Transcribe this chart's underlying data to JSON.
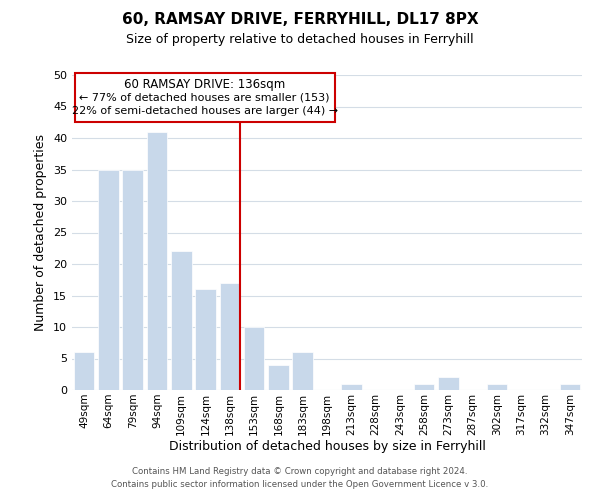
{
  "title": "60, RAMSAY DRIVE, FERRYHILL, DL17 8PX",
  "subtitle": "Size of property relative to detached houses in Ferryhill",
  "xlabel": "Distribution of detached houses by size in Ferryhill",
  "ylabel": "Number of detached properties",
  "bar_labels": [
    "49sqm",
    "64sqm",
    "79sqm",
    "94sqm",
    "109sqm",
    "124sqm",
    "138sqm",
    "153sqm",
    "168sqm",
    "183sqm",
    "198sqm",
    "213sqm",
    "228sqm",
    "243sqm",
    "258sqm",
    "273sqm",
    "287sqm",
    "302sqm",
    "317sqm",
    "332sqm",
    "347sqm"
  ],
  "bar_values": [
    6,
    35,
    35,
    41,
    22,
    16,
    17,
    10,
    4,
    6,
    0,
    1,
    0,
    0,
    1,
    2,
    0,
    1,
    0,
    0,
    1
  ],
  "bar_color": "#c8d8ea",
  "bar_edge_color": "#ffffff",
  "highlight_index": 6,
  "highlight_line_color": "#cc0000",
  "ylim": [
    0,
    50
  ],
  "yticks": [
    0,
    5,
    10,
    15,
    20,
    25,
    30,
    35,
    40,
    45,
    50
  ],
  "annotation_title": "60 RAMSAY DRIVE: 136sqm",
  "annotation_line1": "← 77% of detached houses are smaller (153)",
  "annotation_line2": "22% of semi-detached houses are larger (44) →",
  "annotation_box_edge": "#cc0000",
  "footer1": "Contains HM Land Registry data © Crown copyright and database right 2024.",
  "footer2": "Contains public sector information licensed under the Open Government Licence v 3.0.",
  "background_color": "#ffffff",
  "grid_color": "#d4dde6"
}
